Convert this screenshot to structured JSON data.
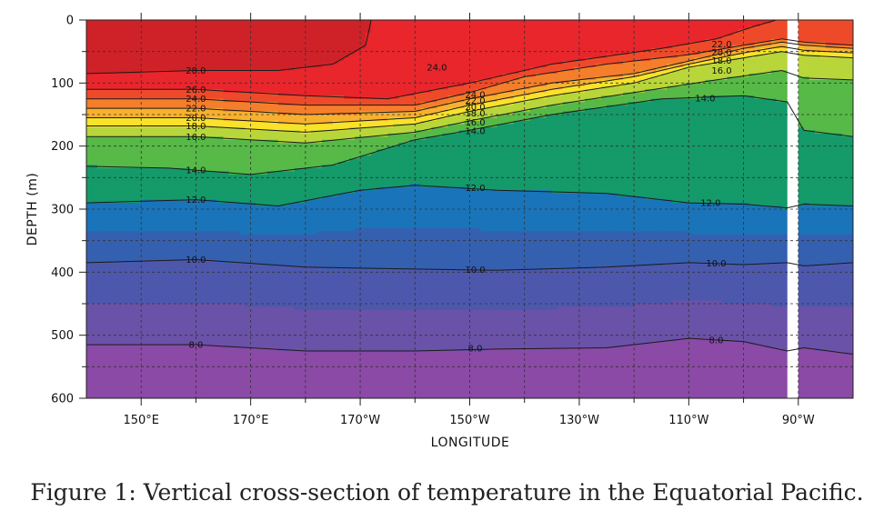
{
  "caption": "Figure 1: Vertical cross-section of temperature in the Equatorial Pacific.",
  "chart_data": {
    "type": "heatmap",
    "title": "",
    "xlabel": "LONGITUDE",
    "ylabel": "DEPTH (m)",
    "x_range_deg_east": [
      140,
      280
    ],
    "y_range_m": [
      0,
      600
    ],
    "y_inverted": true,
    "grid": true,
    "x_ticks": [
      {
        "value": 150,
        "label": "150°E"
      },
      {
        "value": 170,
        "label": "170°E"
      },
      {
        "value": 190,
        "label": "170°W"
      },
      {
        "value": 210,
        "label": "150°W"
      },
      {
        "value": 230,
        "label": "130°W"
      },
      {
        "value": 250,
        "label": "110°W"
      },
      {
        "value": 270,
        "label": "90°W"
      }
    ],
    "y_ticks": [
      {
        "value": 0,
        "label": "0"
      },
      {
        "value": 100,
        "label": "100"
      },
      {
        "value": 200,
        "label": "200"
      },
      {
        "value": 300,
        "label": "300"
      },
      {
        "value": 400,
        "label": "400"
      },
      {
        "value": 500,
        "label": "500"
      },
      {
        "value": 600,
        "label": "600"
      }
    ],
    "data_gap_lon": [
      268,
      270
    ],
    "isotherms": [
      {
        "temp": 28,
        "label": "28.0",
        "label_lon": 160,
        "points": [
          [
            140,
            85
          ],
          [
            160,
            80
          ],
          [
            175,
            80
          ],
          [
            185,
            70
          ],
          [
            191,
            40
          ],
          [
            192,
            0
          ]
        ]
      },
      {
        "temp": 26,
        "label": "26.0",
        "label_lon": 160,
        "points": [
          [
            140,
            110
          ],
          [
            160,
            110
          ],
          [
            180,
            120
          ],
          [
            195,
            125
          ],
          [
            210,
            100
          ],
          [
            225,
            70
          ],
          [
            245,
            45
          ],
          [
            255,
            30
          ],
          [
            262,
            10
          ],
          [
            266,
            0
          ]
        ]
      },
      {
        "temp": 24,
        "label": "24.0",
        "label_lon": 160,
        "points": [
          [
            140,
            125
          ],
          [
            160,
            125
          ],
          [
            180,
            135
          ],
          [
            200,
            135
          ],
          [
            210,
            115
          ],
          [
            220,
            90
          ],
          [
            235,
            70
          ],
          [
            250,
            55
          ],
          [
            260,
            40
          ],
          [
            267,
            30
          ],
          [
            271,
            35
          ],
          [
            280,
            40
          ]
        ]
      },
      {
        "temp": 22,
        "label": "22.0",
        "label_lon": 160,
        "points": [
          [
            140,
            140
          ],
          [
            160,
            140
          ],
          [
            180,
            150
          ],
          [
            200,
            145
          ],
          [
            210,
            125
          ],
          [
            225,
            100
          ],
          [
            240,
            85
          ],
          [
            250,
            65
          ],
          [
            260,
            45
          ],
          [
            267,
            35
          ],
          [
            271,
            40
          ],
          [
            280,
            45
          ]
        ]
      },
      {
        "temp": 20,
        "label": "20.0",
        "label_lon": 160,
        "points": [
          [
            140,
            155
          ],
          [
            160,
            155
          ],
          [
            180,
            165
          ],
          [
            200,
            155
          ],
          [
            210,
            135
          ],
          [
            225,
            110
          ],
          [
            240,
            90
          ],
          [
            250,
            70
          ],
          [
            260,
            52
          ],
          [
            267,
            42
          ],
          [
            271,
            48
          ],
          [
            280,
            52
          ]
        ]
      },
      {
        "temp": 18,
        "label": "18.0",
        "label_lon": 160,
        "points": [
          [
            140,
            168
          ],
          [
            160,
            168
          ],
          [
            180,
            178
          ],
          [
            200,
            165
          ],
          [
            210,
            145
          ],
          [
            225,
            120
          ],
          [
            240,
            100
          ],
          [
            250,
            75
          ],
          [
            260,
            60
          ],
          [
            267,
            50
          ],
          [
            271,
            56
          ],
          [
            280,
            60
          ]
        ]
      },
      {
        "temp": 16,
        "label": "16.0",
        "label_lon": 160,
        "points": [
          [
            140,
            185
          ],
          [
            160,
            185
          ],
          [
            180,
            195
          ],
          [
            200,
            178
          ],
          [
            210,
            160
          ],
          [
            225,
            135
          ],
          [
            240,
            115
          ],
          [
            255,
            95
          ],
          [
            267,
            80
          ],
          [
            271,
            92
          ],
          [
            280,
            95
          ]
        ]
      },
      {
        "temp": 14,
        "label": "14.0",
        "label_lon": 160,
        "points": [
          [
            140,
            232
          ],
          [
            155,
            235
          ],
          [
            170,
            245
          ],
          [
            185,
            230
          ],
          [
            200,
            190
          ],
          [
            210,
            175
          ],
          [
            225,
            150
          ],
          [
            245,
            125
          ],
          [
            260,
            120
          ],
          [
            268,
            130
          ],
          [
            271,
            175
          ],
          [
            280,
            185
          ]
        ]
      },
      {
        "temp": 12,
        "label": "12.0",
        "label_lon": 160,
        "points": [
          [
            140,
            290
          ],
          [
            160,
            285
          ],
          [
            175,
            295
          ],
          [
            190,
            270
          ],
          [
            200,
            262
          ],
          [
            215,
            270
          ],
          [
            235,
            275
          ],
          [
            250,
            290
          ],
          [
            260,
            292
          ],
          [
            268,
            298
          ],
          [
            271,
            292
          ],
          [
            280,
            295
          ]
        ]
      },
      {
        "temp": 10,
        "label": "10.0",
        "label_lon": 160,
        "points": [
          [
            140,
            385
          ],
          [
            160,
            380
          ],
          [
            180,
            392
          ],
          [
            200,
            395
          ],
          [
            215,
            397
          ],
          [
            235,
            392
          ],
          [
            250,
            385
          ],
          [
            260,
            388
          ],
          [
            268,
            385
          ],
          [
            271,
            390
          ],
          [
            280,
            385
          ]
        ]
      },
      {
        "temp": 8,
        "label": "8.0",
        "label_lon": 160,
        "points": [
          [
            140,
            515
          ],
          [
            160,
            515
          ],
          [
            180,
            525
          ],
          [
            200,
            525
          ],
          [
            215,
            522
          ],
          [
            235,
            520
          ],
          [
            250,
            505
          ],
          [
            260,
            510
          ],
          [
            268,
            525
          ],
          [
            271,
            520
          ],
          [
            280,
            530
          ]
        ]
      }
    ],
    "extra_labels": [
      {
        "label": "24.0",
        "lon": 204,
        "depth": 75
      },
      {
        "label": "24.0",
        "lon": 211,
        "depth": 118
      },
      {
        "label": "22.0",
        "lon": 211,
        "depth": 128
      },
      {
        "label": "20.0",
        "lon": 211,
        "depth": 138
      },
      {
        "label": "18.0",
        "lon": 211,
        "depth": 148
      },
      {
        "label": "16.0",
        "lon": 211,
        "depth": 162
      },
      {
        "label": "14.0",
        "lon": 211,
        "depth": 176
      },
      {
        "label": "12.0",
        "lon": 211,
        "depth": 266
      },
      {
        "label": "10.0",
        "lon": 211,
        "depth": 396
      },
      {
        "label": "8.0",
        "lon": 211,
        "depth": 521
      },
      {
        "label": "22.0",
        "lon": 256,
        "depth": 38
      },
      {
        "label": "20.0",
        "lon": 256,
        "depth": 51
      },
      {
        "label": "18.0",
        "lon": 256,
        "depth": 64
      },
      {
        "label": "16.0",
        "lon": 256,
        "depth": 80
      },
      {
        "label": "14.0",
        "lon": 253,
        "depth": 124
      },
      {
        "label": "12.0",
        "lon": 254,
        "depth": 290
      },
      {
        "label": "10.0",
        "lon": 255,
        "depth": 386
      },
      {
        "label": "8.0",
        "lon": 255,
        "depth": 508
      }
    ],
    "color_bands": [
      {
        "min_temp": 29,
        "color": "#b01e23"
      },
      {
        "min_temp": 28,
        "color": "#cf2228"
      },
      {
        "min_temp": 26,
        "color": "#e8262c"
      },
      {
        "min_temp": 24,
        "color": "#ee4a2a"
      },
      {
        "min_temp": 22,
        "color": "#f47e2b"
      },
      {
        "min_temp": 20,
        "color": "#f8b02e"
      },
      {
        "min_temp": 18,
        "color": "#f8e22a"
      },
      {
        "min_temp": 16,
        "color": "#b8d63a"
      },
      {
        "min_temp": 14,
        "color": "#57b947"
      },
      {
        "min_temp": 12,
        "color": "#159a6a"
      },
      {
        "min_temp": 11,
        "color": "#1a74b9"
      },
      {
        "min_temp": 10,
        "color": "#3560b0"
      },
      {
        "min_temp": 9,
        "color": "#4d58ad"
      },
      {
        "min_temp": 8,
        "color": "#6a52a8"
      },
      {
        "min_temp": 0,
        "color": "#8a4aa6"
      }
    ]
  }
}
